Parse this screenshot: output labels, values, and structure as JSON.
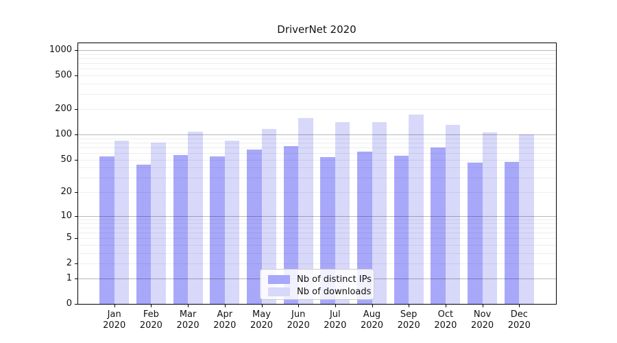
{
  "chart_data": {
    "type": "bar",
    "title": "DriverNet 2020",
    "categories": [
      "Jan 2020",
      "Feb 2020",
      "Mar 2020",
      "Apr 2020",
      "May 2020",
      "Jun 2020",
      "Jul 2020",
      "Aug 2020",
      "Sep 2020",
      "Oct 2020",
      "Nov 2020",
      "Dec 2020"
    ],
    "series": [
      {
        "key": "ips",
        "name": "Nb of distinct IPs",
        "color": "#a8a8fa",
        "values": [
          54,
          43,
          57,
          54,
          66,
          73,
          53,
          62,
          56,
          70,
          46,
          47
        ]
      },
      {
        "key": "downloads",
        "name": "Nb of downloads",
        "color": "#d8d8fa",
        "values": [
          85,
          80,
          107,
          85,
          116,
          157,
          140,
          141,
          172,
          131,
          106,
          100
        ]
      }
    ],
    "yscale": "log1p",
    "ylim": [
      0,
      1230
    ],
    "yticks": [
      0,
      1,
      2,
      5,
      10,
      20,
      50,
      100,
      200,
      500,
      1000
    ],
    "yticks_major_grid": [
      1,
      10,
      100,
      1000
    ],
    "grid": "both",
    "legend_position": "lower center",
    "xlabel": "",
    "ylabel": ""
  },
  "colors": {
    "background": "#ffffff",
    "grid_major": "rgba(0,0,0,0.28)",
    "grid_minor": "rgba(0,0,0,0.065)",
    "spine": "#000000",
    "text": "#111111",
    "legend_border": "#cccccc",
    "legend_background": "rgba(255,255,255,0.85)"
  }
}
